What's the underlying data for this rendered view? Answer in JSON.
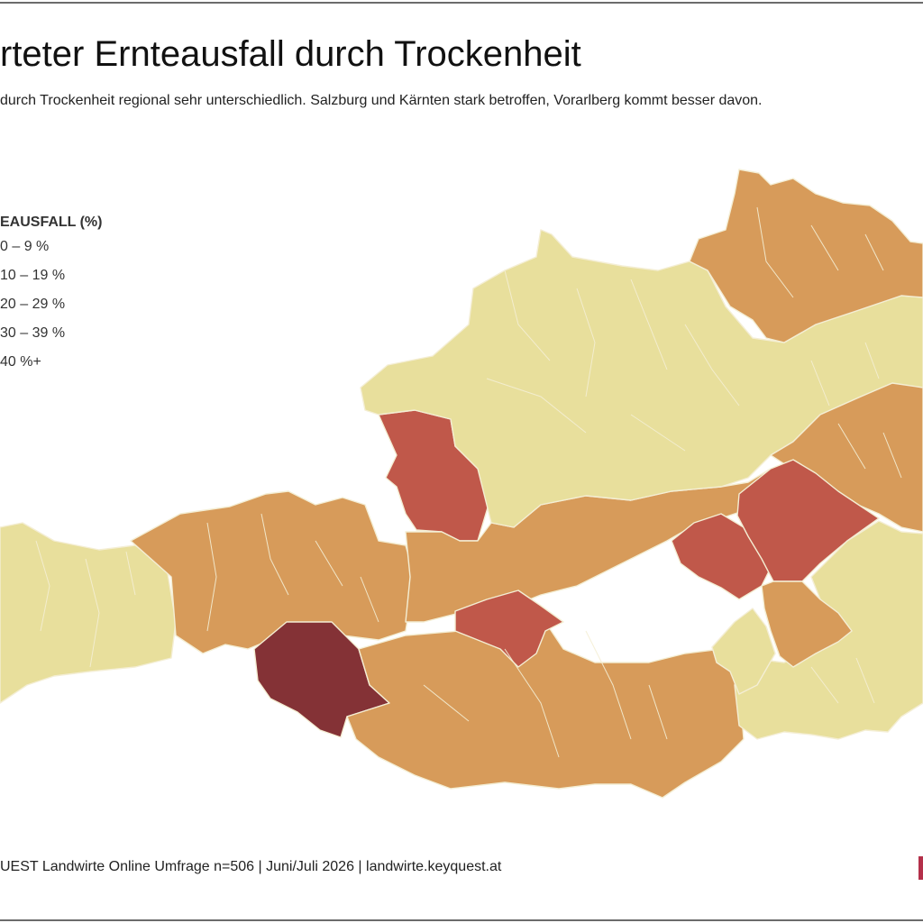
{
  "title": "rteter Ernteausfall durch Trockenheit",
  "subtitle": "durch Trockenheit regional sehr unterschiedlich. Salzburg und Kärnten stark betroffen, Vorarlberg kommt besser davon.",
  "legend": {
    "title": "EAUSFALL (%)",
    "items": [
      {
        "label": "0 – 9 %",
        "color": "#e8df9c"
      },
      {
        "label": "10 – 19 %",
        "color": "#dda560"
      },
      {
        "label": "20 – 29 %",
        "color": "#d59a5a"
      },
      {
        "label": "30 – 39 %",
        "color": "#c0584a"
      },
      {
        "label": "40 %+",
        "color": "#843236"
      }
    ]
  },
  "source": "UEST Landwirte Online Umfrage n=506 | Juni/Juli 2026 | landwirte.keyquest.at",
  "map_colors": {
    "light": "#e8df9c",
    "mid": "#d79b5a",
    "high": "#c0584a",
    "highest": "#843236",
    "border": "#f4eed4"
  }
}
